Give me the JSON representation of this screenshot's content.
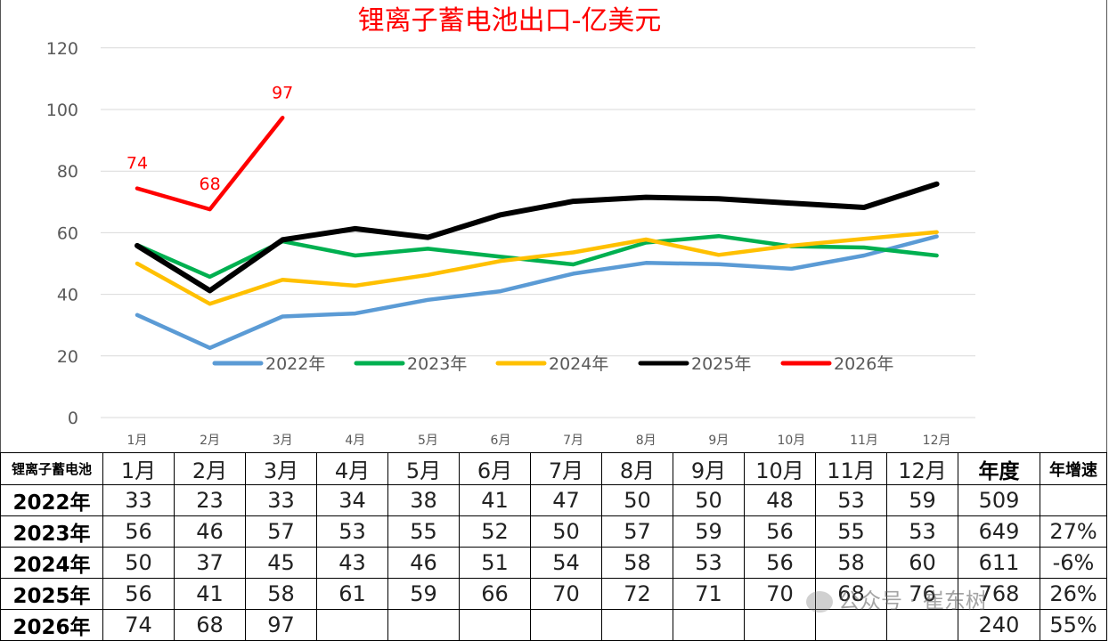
{
  "chart_data": {
    "type": "line",
    "title": "锂离子蓄电池出口-亿美元",
    "categories": [
      "1月",
      "2月",
      "3月",
      "4月",
      "5月",
      "6月",
      "7月",
      "8月",
      "9月",
      "10月",
      "11月",
      "12月"
    ],
    "ylim": [
      0,
      120
    ],
    "yticks": [
      0,
      20,
      40,
      60,
      80,
      100,
      120
    ],
    "grid": true,
    "legend_position": "inside-bottom",
    "series": [
      {
        "name": "2022年",
        "color": "#5b9bd5",
        "values": [
          33.3,
          22.6,
          32.8,
          33.8,
          38.2,
          41.0,
          46.7,
          50.2,
          49.8,
          48.3,
          52.6,
          58.8
        ]
      },
      {
        "name": "2023年",
        "color": "#00b050",
        "values": [
          56,
          45.7,
          57.2,
          52.6,
          54.8,
          52.2,
          49.7,
          56.8,
          58.9,
          55.6,
          55.2,
          52.6
        ]
      },
      {
        "name": "2024年",
        "color": "#ffc000",
        "values": [
          50,
          36.9,
          44.7,
          42.8,
          46.3,
          50.8,
          53.6,
          57.8,
          52.8,
          55.8,
          58,
          60.2
        ]
      },
      {
        "name": "2025年",
        "color": "#000000",
        "values": [
          55.8,
          41.2,
          57.7,
          61.3,
          58.5,
          65.8,
          70.2,
          71.5,
          71,
          69.6,
          68.2,
          75.8
        ]
      },
      {
        "name": "2026年",
        "color": "#ff0000",
        "values": [
          74.4,
          67.6,
          97.3,
          null,
          null,
          null,
          null,
          null,
          null,
          null,
          null,
          null
        ]
      }
    ],
    "data_labels": {
      "series": "2026年",
      "labels": [
        "74",
        "68",
        "97"
      ]
    }
  },
  "table": {
    "corner": "锂离子蓄电池",
    "headers": [
      "1月",
      "2月",
      "3月",
      "4月",
      "5月",
      "6月",
      "7月",
      "8月",
      "9月",
      "10月",
      "11月",
      "12月",
      "年度",
      "年增速"
    ],
    "rows": [
      {
        "label": "2022年",
        "cells": [
          "33",
          "23",
          "33",
          "34",
          "38",
          "41",
          "47",
          "50",
          "50",
          "48",
          "53",
          "59",
          "509",
          ""
        ]
      },
      {
        "label": "2023年",
        "cells": [
          "56",
          "46",
          "57",
          "53",
          "55",
          "52",
          "50",
          "57",
          "59",
          "56",
          "55",
          "53",
          "649",
          "27%"
        ]
      },
      {
        "label": "2024年",
        "cells": [
          "50",
          "37",
          "45",
          "43",
          "46",
          "51",
          "54",
          "58",
          "53",
          "56",
          "58",
          "60",
          "611",
          "-6%"
        ]
      },
      {
        "label": "2025年",
        "cells": [
          "56",
          "41",
          "58",
          "61",
          "59",
          "66",
          "70",
          "72",
          "71",
          "70",
          "68",
          "76",
          "768",
          "26%"
        ]
      },
      {
        "label": "2026年",
        "cells": [
          "74",
          "68",
          "97",
          "",
          "",
          "",
          "",
          "",
          "",
          "",
          "",
          "",
          "240",
          "55%"
        ]
      }
    ]
  },
  "watermark": "公众号 · 崔东树"
}
